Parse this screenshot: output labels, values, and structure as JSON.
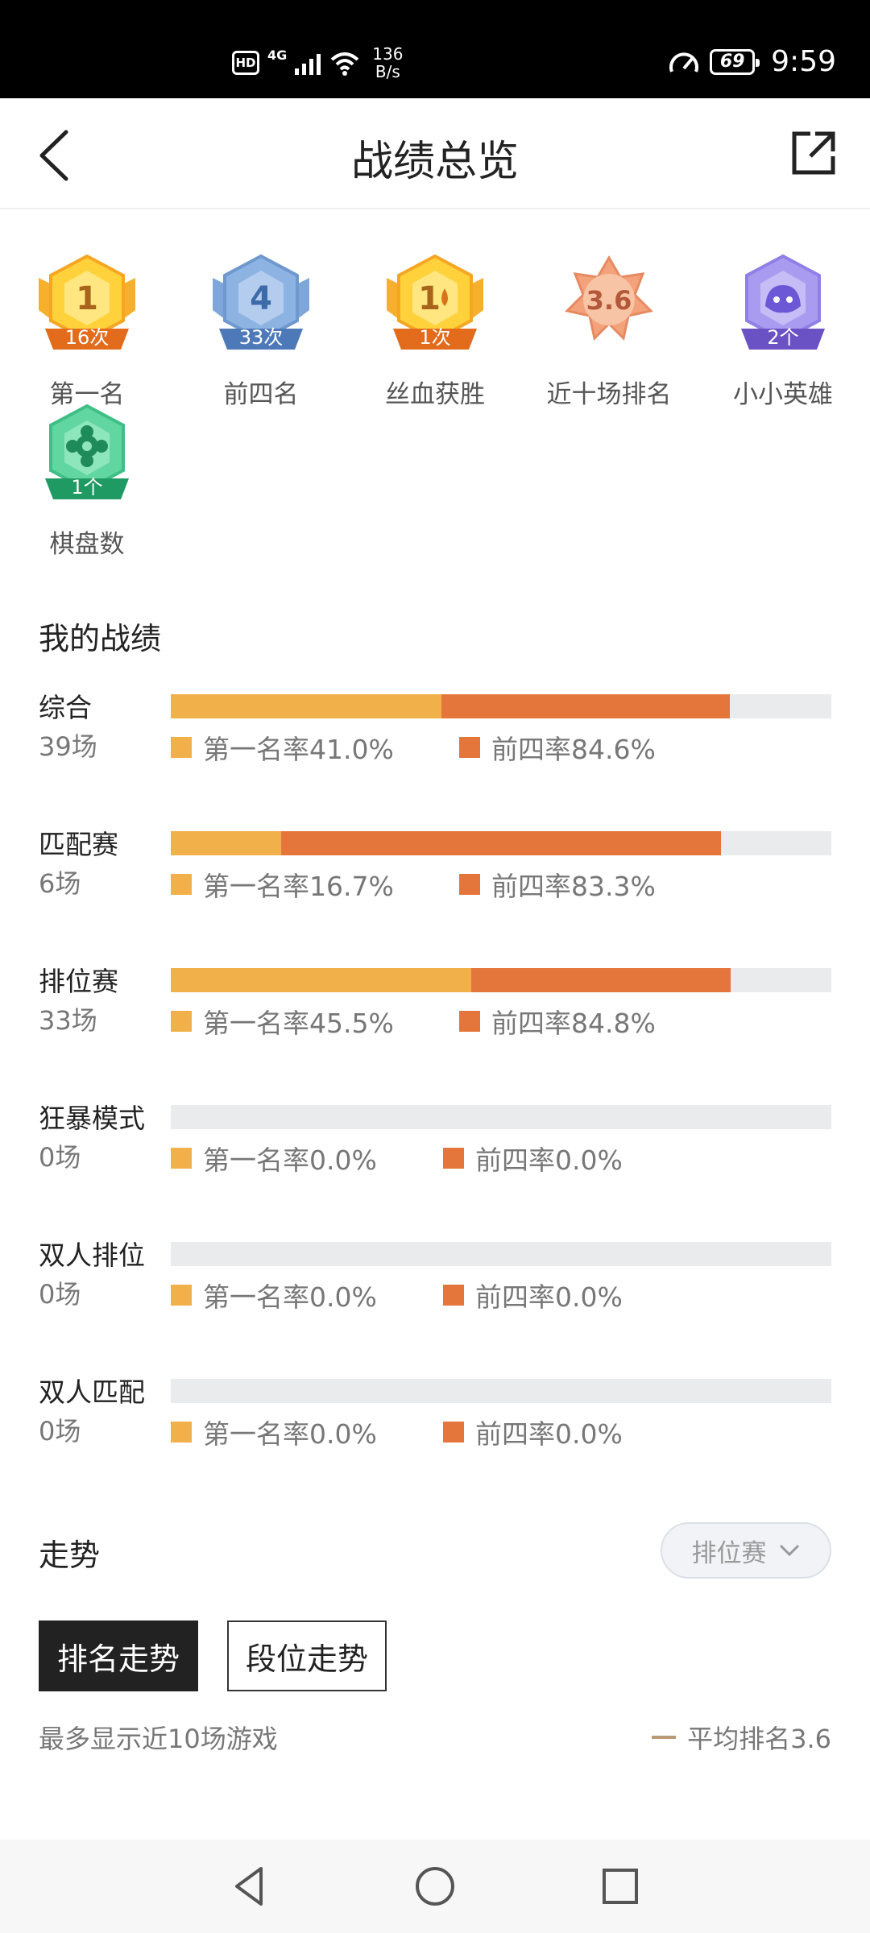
{
  "status_bar": {
    "hd": "HD",
    "network": "4G",
    "speed_value": "136",
    "speed_unit": "B/s",
    "battery": "69",
    "time": "9:59"
  },
  "header": {
    "title": "战绩总览",
    "back_icon": "chevron-left-icon",
    "share_icon": "share-external-icon"
  },
  "badges": [
    {
      "label": "第一名",
      "count": "16次",
      "number": "1",
      "style": "gold",
      "icon": "trophy-badge"
    },
    {
      "label": "前四名",
      "count": "33次",
      "number": "4",
      "style": "blue",
      "icon": "crystal-badge"
    },
    {
      "label": "丝血获胜",
      "count": "1次",
      "number": "1",
      "style": "gold-blood",
      "icon": "blood-drop-badge"
    },
    {
      "label": "近十场排名",
      "count": "",
      "number": "3.6",
      "style": "bronze",
      "icon": "star-badge"
    },
    {
      "label": "小小英雄",
      "count": "2个",
      "number": "",
      "style": "purple",
      "icon": "little-legend-badge"
    },
    {
      "label": "棋盘数",
      "count": "1个",
      "number": "",
      "style": "green",
      "icon": "flower-badge"
    }
  ],
  "my_stats": {
    "title": "我的战绩",
    "rows": [
      {
        "name": "综合",
        "games": "39场",
        "first_label": "第一名率41.0%",
        "top4_label": "前四率84.6%",
        "first_rate": 41.0,
        "top4_rate": 84.6
      },
      {
        "name": "匹配赛",
        "games": "6场",
        "first_label": "第一名率16.7%",
        "top4_label": "前四率83.3%",
        "first_rate": 16.7,
        "top4_rate": 83.3
      },
      {
        "name": "排位赛",
        "games": "33场",
        "first_label": "第一名率45.5%",
        "top4_label": "前四率84.8%",
        "first_rate": 45.5,
        "top4_rate": 84.8
      },
      {
        "name": "狂暴模式",
        "games": "0场",
        "first_label": "第一名率0.0%",
        "top4_label": "前四率0.0%",
        "first_rate": 0,
        "top4_rate": 0
      },
      {
        "name": "双人排位",
        "games": "0场",
        "first_label": "第一名率0.0%",
        "top4_label": "前四率0.0%",
        "first_rate": 0,
        "top4_rate": 0
      },
      {
        "name": "双人匹配",
        "games": "0场",
        "first_label": "第一名率0.0%",
        "top4_label": "前四率0.0%",
        "first_rate": 0,
        "top4_rate": 0
      }
    ]
  },
  "trend": {
    "title": "走势",
    "mode_selected": "排位赛",
    "tabs": [
      "排名走势",
      "段位走势"
    ],
    "note": "最多显示近10场游戏",
    "avg_rank": "平均排名3.6"
  },
  "colors": {
    "first": "#f2b04a",
    "top4": "#e5763b",
    "track": "#e9ebed"
  }
}
